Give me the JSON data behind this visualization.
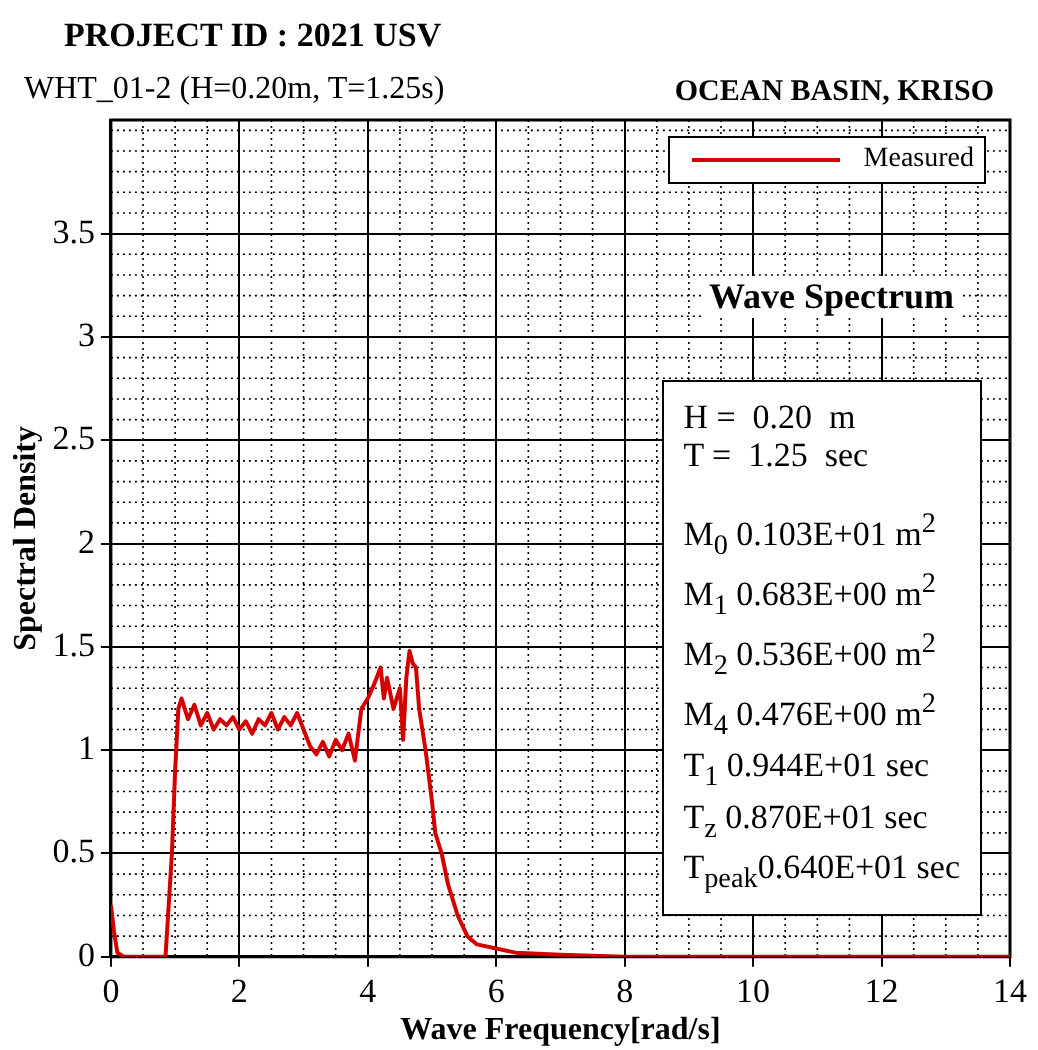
{
  "chart_data": {
    "type": "line",
    "title": "PROJECT ID : 2021 USV",
    "subtitle": "WHT_01-2 (H=0.20m, T=1.25s)",
    "xlabel": "Wave Frequency[rad/s]",
    "ylabel": "Spectral Density",
    "annotations": [
      "OCEAN BASIN, KRISO",
      "Wave Spectrum",
      "H =  0.20  m",
      "T =  1.25  sec",
      "M$_{0}$ 0.103E+01 m$^{2}$",
      "M$_{1}$ 0.683E+00 m$^{2}$",
      "M$_{2}$ 0.536E+00 m$^{2}$",
      "M$_{4}$ 0.476E+00 m$^{2}$",
      "T$_{1}$ 0.944E+01 sec",
      "T$_{z}$ 0.870E+01 sec",
      "T$_{peak}$0.640E+01 sec"
    ],
    "x": [
      0,
      0.05,
      0.1,
      0.2,
      0.5,
      0.85,
      0.95,
      1.0,
      1.05,
      1.1,
      1.2,
      1.3,
      1.4,
      1.5,
      1.6,
      1.7,
      1.8,
      1.9,
      2.0,
      2.1,
      2.2,
      2.3,
      2.4,
      2.5,
      2.6,
      2.7,
      2.8,
      2.9,
      3.0,
      3.1,
      3.2,
      3.3,
      3.4,
      3.5,
      3.6,
      3.7,
      3.8,
      3.9,
      4.0,
      4.1,
      4.2,
      4.25,
      4.3,
      4.4,
      4.5,
      4.55,
      4.6,
      4.65,
      4.7,
      4.75,
      4.8,
      4.9,
      5.0,
      5.05,
      5.15,
      5.25,
      5.4,
      5.55,
      5.7,
      6.0,
      6.3,
      7,
      8,
      10,
      14
    ],
    "series": [
      {
        "name": "Measured",
        "color": "#d40000",
        "values": [
          0.25,
          0.12,
          0.02,
          0,
          0,
          0,
          0.5,
          0.9,
          1.2,
          1.25,
          1.15,
          1.22,
          1.12,
          1.18,
          1.1,
          1.15,
          1.12,
          1.16,
          1.1,
          1.14,
          1.08,
          1.15,
          1.12,
          1.18,
          1.1,
          1.16,
          1.12,
          1.18,
          1.1,
          1.02,
          0.98,
          1.04,
          0.97,
          1.05,
          1.0,
          1.08,
          0.95,
          1.2,
          1.25,
          1.32,
          1.4,
          1.25,
          1.35,
          1.2,
          1.3,
          1.05,
          1.35,
          1.48,
          1.42,
          1.4,
          1.2,
          1.0,
          0.75,
          0.6,
          0.5,
          0.35,
          0.2,
          0.1,
          0.06,
          0.04,
          0.02,
          0.01,
          0,
          0,
          0
        ]
      }
    ],
    "xlim": [
      0,
      14
    ],
    "xticks": [
      0,
      2,
      4,
      6,
      8,
      10,
      12,
      14
    ],
    "ylim": [
      0,
      4.05
    ],
    "yticks": [
      0,
      0.5,
      1,
      1.5,
      2,
      2.5,
      3,
      3.5
    ],
    "grid": true,
    "legend": "top right",
    "marker": "none",
    "line_style": "solid"
  }
}
